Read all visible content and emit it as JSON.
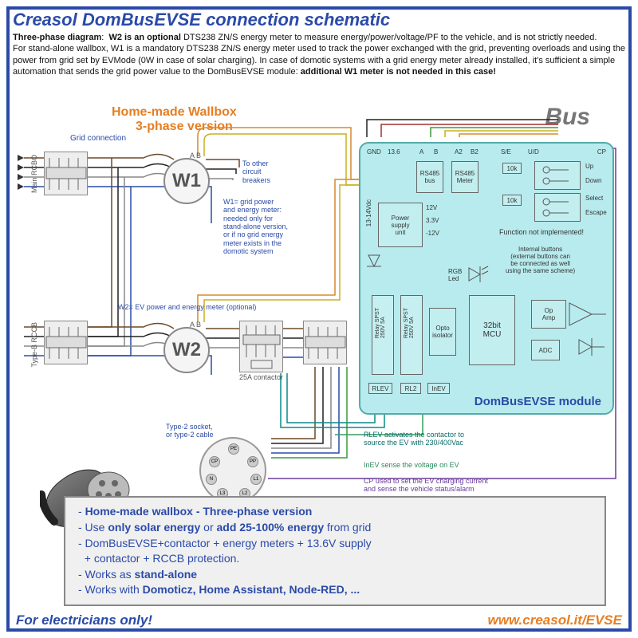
{
  "title": "Creasol DomBusEVSE connection schematic",
  "desc_html": "<b>Three-phase diagram</b>: &nbsp;<b>W2 is an optional</b> DTS238 ZN/S energy meter to measure energy/power/voltage/PF to the vehicle, and is not strictly needed.<br>For stand-alone wallbox, W1 is a mandatory DTS238 ZN/S energy meter used to track the power exchanged with the grid, preventing overloads and using the power from grid set by EVMode (0W in case of solar charging). In case of domotic systems with a grid energy meter already installed, it's sufficient a simple automation that sends the grid power value to the DomBusEVSE module: <b>additional W1 meter is not needed in this case!</b>",
  "subtitle1": "Home-made Wallbox",
  "subtitle2": "3-phase version",
  "bus": "Bus",
  "gridconn": "Grid connection",
  "breakers": {
    "main": "Main RCBO",
    "typeB": "Type-B RCCB",
    "contactor": "25A contactor"
  },
  "meters": {
    "w1": "W1",
    "w2": "W2",
    "ab": "A B"
  },
  "module": {
    "name": "DomBusEVSE module",
    "pins_top": [
      "GND",
      "13.6",
      "A",
      "B",
      "A2",
      "B2",
      "S/E",
      "U/D",
      "CP"
    ],
    "psu": "Power\nsupply\nunit",
    "psu_out": [
      "12V",
      "3.3V",
      "-12V"
    ],
    "psu_in": "13-14Vdc",
    "rs485a": "RS485\nbus",
    "rs485b": "RS485\nMeter",
    "tenk": "10k",
    "updown": [
      "Up",
      "Down"
    ],
    "selesc": [
      "Select",
      "Escape"
    ],
    "notimpl": "Function not implemented!",
    "intbtn": "Internal buttons\n(external buttons can\nbe connected as well\nusing the same scheme)",
    "rgb": "RGB\nLed",
    "relay": "Relay SPST\n250V 5A",
    "opto": "Opto\nisolator",
    "mcu": "32bit\nMCU",
    "opamp": "Op\nAmp",
    "adc": "ADC",
    "bottom_pins": [
      "RLEV",
      "RL2",
      "InEV"
    ]
  },
  "notes": {
    "other_breakers": "To other\ncircuit\nbreakers",
    "w1_note": "W1= grid power\nand energy meter:\nneeded only for\nstand-alone version,\nor if no grid energy\nmeter exists in the\ndomotic system",
    "w2_note": "W2= EV power and energy meter (optional)",
    "type2": "Type-2 socket,\nor type-2 cable",
    "rlev": "RLEV activates the contactor to\nsource the EV with 230/400Vac",
    "inev": "InEV sense the voltage on EV",
    "cp": "CP used to set the EV charging current\nand sense the vehicle status/alarm"
  },
  "socket_pins": [
    "PE",
    "CP",
    "PP",
    "N",
    "L1",
    "L3",
    "L2"
  ],
  "summary_lines": [
    "- <b>Home-made wallbox - Three-phase version</b>",
    "- Use <b>only solar energy</b> or <b>add 25-100% energy</b> from grid",
    "- DomBusEVSE+contactor + energy meters + 13.6V supply<br>&nbsp;&nbsp;+ contactor + RCCB protection.",
    "- Works as <b>stand-alone</b>",
    "- Works with <b>Domoticz, Home Assistant, Node-RED, ...</b>"
  ],
  "footer_left": "For electricians only!",
  "footer_right": "www.creasol.it/EVSE",
  "colors": {
    "blue": "#2a4aa8",
    "orange": "#e67e22",
    "module_bg": "#b8ebee",
    "wire_brown": "#6b4a2a",
    "wire_black": "#222",
    "wire_grey": "#888",
    "wire_blue": "#2a4aa8",
    "wire_green": "#3a9a3a",
    "wire_orange": "#d88a2a",
    "wire_yellow": "#c8b020",
    "wire_teal": "#0a8a8a",
    "wire_purple": "#6a3a9a"
  }
}
